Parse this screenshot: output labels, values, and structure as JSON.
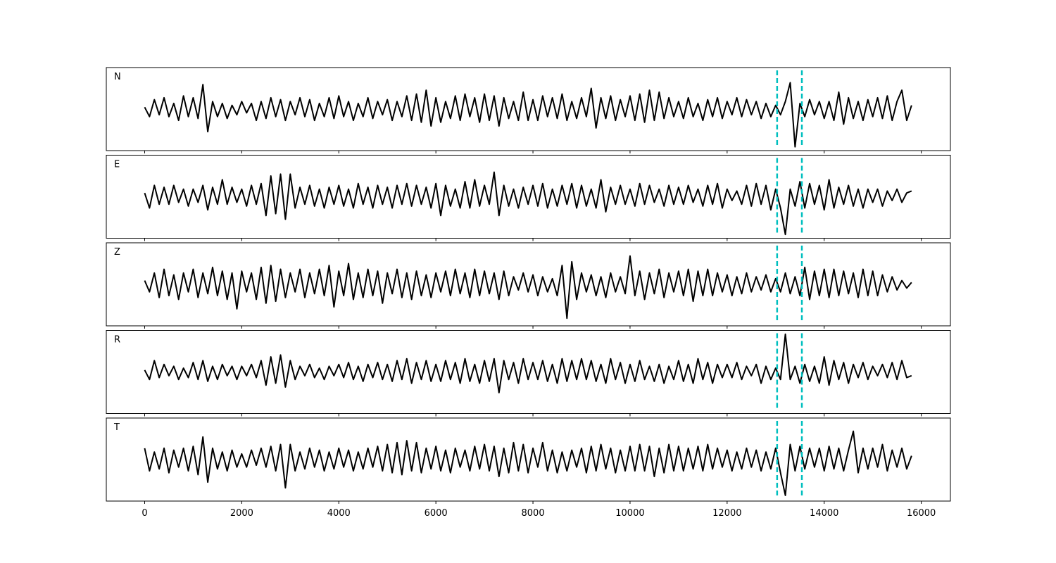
{
  "chart_data": {
    "type": "line",
    "subplots": true,
    "xlim": [
      -790,
      16600
    ],
    "ylim": [
      -1.1,
      1.1
    ],
    "xticks": [
      0,
      2000,
      4000,
      6000,
      8000,
      10000,
      12000,
      14000,
      16000
    ],
    "vlines": [
      13030,
      13540
    ],
    "vline_color": "#00bfbf",
    "x": [
      0,
      100,
      200,
      300,
      400,
      500,
      600,
      700,
      800,
      900,
      1000,
      1100,
      1200,
      1300,
      1400,
      1500,
      1600,
      1700,
      1800,
      1900,
      2000,
      2100,
      2200,
      2300,
      2400,
      2500,
      2600,
      2700,
      2800,
      2900,
      3000,
      3100,
      3200,
      3300,
      3400,
      3500,
      3600,
      3700,
      3800,
      3900,
      4000,
      4100,
      4200,
      4300,
      4400,
      4500,
      4600,
      4700,
      4800,
      4900,
      5000,
      5100,
      5200,
      5300,
      5400,
      5500,
      5600,
      5700,
      5800,
      5900,
      6000,
      6100,
      6200,
      6300,
      6400,
      6500,
      6600,
      6700,
      6800,
      6900,
      7000,
      7100,
      7200,
      7300,
      7400,
      7500,
      7600,
      7700,
      7800,
      7900,
      8000,
      8100,
      8200,
      8300,
      8400,
      8500,
      8600,
      8700,
      8800,
      8900,
      9000,
      9100,
      9200,
      9300,
      9400,
      9500,
      9600,
      9700,
      9800,
      9900,
      10000,
      10100,
      10200,
      10300,
      10400,
      10500,
      10600,
      10700,
      10800,
      10900,
      11000,
      11100,
      11200,
      11300,
      11400,
      11500,
      11600,
      11700,
      11800,
      11900,
      12000,
      12100,
      12200,
      12300,
      12400,
      12500,
      12600,
      12700,
      12800,
      12900,
      13000,
      13100,
      13200,
      13300,
      13400,
      13500,
      13600,
      13700,
      13800,
      13900,
      14000,
      14100,
      14200,
      14300,
      14400,
      14500,
      14600,
      14700,
      14800,
      14900,
      15000,
      15100,
      15200,
      15300,
      15400,
      15500,
      15600,
      15700,
      15800
    ],
    "series": [
      {
        "name": "N",
        "color": "#000000",
        "values": [
          0.05,
          -0.2,
          0.25,
          -0.15,
          0.3,
          -0.2,
          0.15,
          -0.3,
          0.35,
          -0.2,
          0.3,
          -0.25,
          0.65,
          -0.6,
          0.2,
          -0.2,
          0.15,
          -0.25,
          0.1,
          -0.15,
          0.2,
          -0.1,
          0.15,
          -0.3,
          0.2,
          -0.25,
          0.3,
          -0.2,
          0.25,
          -0.3,
          0.2,
          -0.15,
          0.3,
          -0.2,
          0.25,
          -0.3,
          0.15,
          -0.2,
          0.3,
          -0.25,
          0.35,
          -0.2,
          0.2,
          -0.3,
          0.15,
          -0.2,
          0.3,
          -0.25,
          0.2,
          -0.15,
          0.25,
          -0.3,
          0.2,
          -0.2,
          0.35,
          -0.3,
          0.4,
          -0.35,
          0.5,
          -0.45,
          0.3,
          -0.35,
          0.2,
          -0.25,
          0.35,
          -0.3,
          0.4,
          -0.2,
          0.3,
          -0.35,
          0.4,
          -0.3,
          0.35,
          -0.45,
          0.3,
          -0.25,
          0.2,
          -0.3,
          0.45,
          -0.3,
          0.25,
          -0.3,
          0.35,
          -0.2,
          0.3,
          -0.25,
          0.4,
          -0.3,
          0.2,
          -0.25,
          0.3,
          -0.2,
          0.55,
          -0.5,
          0.3,
          -0.25,
          0.35,
          -0.3,
          0.25,
          -0.2,
          0.35,
          -0.3,
          0.4,
          -0.35,
          0.5,
          -0.3,
          0.45,
          -0.25,
          0.3,
          -0.2,
          0.2,
          -0.25,
          0.3,
          -0.2,
          0.15,
          -0.3,
          0.25,
          -0.2,
          0.3,
          -0.25,
          0.2,
          -0.15,
          0.3,
          -0.2,
          0.25,
          -0.15,
          0.2,
          -0.25,
          0.15,
          -0.2,
          0.1,
          -0.15,
          0.2,
          0.7,
          -1.0,
          0.15,
          -0.2,
          0.25,
          -0.15,
          0.2,
          -0.25,
          0.2,
          -0.3,
          0.45,
          -0.4,
          0.3,
          -0.25,
          0.2,
          -0.3,
          0.25,
          -0.2,
          0.3,
          -0.25,
          0.35,
          -0.3,
          0.2,
          0.5,
          -0.3,
          0.1
        ]
      },
      {
        "name": "E",
        "color": "#000000",
        "values": [
          0.1,
          -0.3,
          0.3,
          -0.2,
          0.25,
          -0.2,
          0.3,
          -0.15,
          0.2,
          -0.25,
          0.2,
          -0.15,
          0.3,
          -0.35,
          0.25,
          -0.2,
          0.45,
          -0.2,
          0.25,
          -0.15,
          0.2,
          -0.25,
          0.3,
          -0.2,
          0.35,
          -0.5,
          0.55,
          -0.45,
          0.6,
          -0.6,
          0.6,
          -0.3,
          0.25,
          -0.2,
          0.3,
          -0.25,
          0.2,
          -0.3,
          0.25,
          -0.2,
          0.3,
          -0.25,
          0.2,
          -0.3,
          0.35,
          -0.2,
          0.25,
          -0.3,
          0.3,
          -0.2,
          0.25,
          -0.3,
          0.3,
          -0.2,
          0.35,
          -0.25,
          0.3,
          -0.2,
          0.25,
          -0.3,
          0.35,
          -0.5,
          0.3,
          -0.25,
          0.2,
          -0.3,
          0.4,
          -0.3,
          0.45,
          -0.25,
          0.3,
          -0.2,
          0.65,
          -0.5,
          0.3,
          -0.25,
          0.2,
          -0.3,
          0.25,
          -0.2,
          0.3,
          -0.25,
          0.35,
          -0.3,
          0.2,
          -0.25,
          0.3,
          -0.2,
          0.35,
          -0.3,
          0.3,
          -0.25,
          0.2,
          -0.3,
          0.45,
          -0.4,
          0.25,
          -0.2,
          0.3,
          -0.2,
          0.2,
          -0.25,
          0.35,
          -0.2,
          0.3,
          -0.15,
          0.2,
          -0.25,
          0.3,
          -0.2,
          0.25,
          -0.2,
          0.3,
          -0.15,
          0.2,
          -0.25,
          0.3,
          -0.2,
          0.35,
          -0.3,
          0.2,
          -0.1,
          0.15,
          -0.2,
          0.3,
          -0.25,
          0.35,
          -0.2,
          0.3,
          -0.35,
          0.2,
          -0.3,
          -1.0,
          0.2,
          -0.25,
          0.4,
          -0.3,
          0.35,
          -0.2,
          0.3,
          -0.35,
          0.45,
          -0.3,
          0.25,
          -0.2,
          0.3,
          -0.25,
          0.2,
          -0.3,
          0.2,
          -0.15,
          0.2,
          -0.25,
          0.15,
          -0.1,
          0.2,
          -0.15,
          0.1,
          0.15
        ]
      },
      {
        "name": "Z",
        "color": "#000000",
        "values": [
          0.1,
          -0.2,
          0.3,
          -0.35,
          0.4,
          -0.3,
          0.25,
          -0.4,
          0.3,
          -0.2,
          0.4,
          -0.35,
          0.3,
          -0.25,
          0.45,
          -0.3,
          0.35,
          -0.4,
          0.3,
          -0.65,
          0.35,
          -0.2,
          0.3,
          -0.4,
          0.45,
          -0.5,
          0.5,
          -0.45,
          0.4,
          -0.35,
          0.3,
          -0.2,
          0.4,
          -0.35,
          0.3,
          -0.25,
          0.4,
          -0.3,
          0.5,
          -0.6,
          0.35,
          -0.3,
          0.55,
          -0.4,
          0.3,
          -0.35,
          0.4,
          -0.3,
          0.35,
          -0.5,
          0.3,
          -0.25,
          0.4,
          -0.35,
          0.3,
          -0.4,
          0.35,
          -0.3,
          0.25,
          -0.35,
          0.3,
          -0.2,
          0.35,
          -0.3,
          0.4,
          -0.25,
          0.3,
          -0.35,
          0.4,
          -0.3,
          0.35,
          -0.25,
          0.3,
          -0.4,
          0.35,
          -0.3,
          0.2,
          -0.15,
          0.3,
          -0.2,
          0.25,
          -0.3,
          0.2,
          -0.2,
          0.15,
          -0.3,
          0.5,
          -0.9,
          0.6,
          -0.4,
          0.3,
          -0.2,
          0.25,
          -0.3,
          0.2,
          -0.35,
          0.3,
          -0.2,
          0.2,
          -0.25,
          0.75,
          -0.3,
          0.35,
          -0.4,
          0.3,
          -0.25,
          0.4,
          -0.35,
          0.3,
          -0.2,
          0.35,
          -0.3,
          0.4,
          -0.45,
          0.35,
          -0.3,
          0.4,
          -0.3,
          0.3,
          -0.2,
          0.25,
          -0.3,
          0.2,
          -0.25,
          0.3,
          -0.2,
          0.2,
          -0.15,
          0.25,
          -0.2,
          0.15,
          -0.2,
          0.3,
          -0.25,
          0.2,
          -0.3,
          0.45,
          -0.4,
          0.35,
          -0.3,
          0.4,
          -0.35,
          0.4,
          -0.3,
          0.35,
          -0.25,
          0.3,
          -0.35,
          0.4,
          -0.3,
          0.35,
          -0.3,
          0.25,
          -0.2,
          0.2,
          -0.15,
          0.1,
          -0.1,
          0.05
        ]
      },
      {
        "name": "R",
        "color": "#000000",
        "values": [
          0.05,
          -0.2,
          0.3,
          -0.15,
          0.2,
          -0.1,
          0.15,
          -0.2,
          0.1,
          -0.15,
          0.25,
          -0.2,
          0.3,
          -0.25,
          0.15,
          -0.2,
          0.2,
          -0.1,
          0.15,
          -0.2,
          0.15,
          -0.1,
          0.2,
          -0.15,
          0.3,
          -0.35,
          0.4,
          -0.3,
          0.45,
          -0.4,
          0.3,
          -0.2,
          0.15,
          -0.1,
          0.2,
          -0.15,
          0.1,
          -0.2,
          0.15,
          -0.1,
          0.2,
          -0.15,
          0.25,
          -0.2,
          0.15,
          -0.25,
          0.2,
          -0.15,
          0.25,
          -0.2,
          0.2,
          -0.25,
          0.3,
          -0.2,
          0.35,
          -0.3,
          0.25,
          -0.2,
          0.3,
          -0.25,
          0.2,
          -0.25,
          0.3,
          -0.2,
          0.25,
          -0.3,
          0.35,
          -0.25,
          0.2,
          -0.3,
          0.3,
          -0.25,
          0.35,
          -0.55,
          0.3,
          -0.2,
          0.25,
          -0.3,
          0.35,
          -0.2,
          0.25,
          -0.2,
          0.3,
          -0.25,
          0.2,
          -0.3,
          0.35,
          -0.25,
          0.3,
          -0.2,
          0.35,
          -0.2,
          0.3,
          -0.25,
          0.2,
          -0.3,
          0.35,
          -0.2,
          0.25,
          -0.3,
          0.2,
          -0.25,
          0.3,
          -0.2,
          0.15,
          -0.25,
          0.2,
          -0.3,
          0.15,
          -0.2,
          0.3,
          -0.25,
          0.2,
          -0.3,
          0.35,
          -0.2,
          0.25,
          -0.3,
          0.2,
          -0.15,
          0.2,
          -0.15,
          0.25,
          -0.2,
          0.15,
          -0.1,
          0.2,
          -0.3,
          0.15,
          -0.2,
          0.1,
          -0.2,
          1.0,
          -0.2,
          0.15,
          -0.3,
          0.2,
          -0.25,
          0.15,
          -0.3,
          0.4,
          -0.35,
          0.3,
          -0.2,
          0.25,
          -0.3,
          0.2,
          -0.15,
          0.25,
          -0.2,
          0.15,
          -0.1,
          0.2,
          -0.15,
          0.25,
          -0.2,
          0.3,
          -0.15,
          -0.1
        ]
      },
      {
        "name": "T",
        "color": "#000000",
        "values": [
          0.3,
          -0.3,
          0.2,
          -0.25,
          0.3,
          -0.35,
          0.25,
          -0.2,
          0.3,
          -0.3,
          0.35,
          -0.4,
          0.6,
          -0.6,
          0.3,
          -0.25,
          0.2,
          -0.3,
          0.25,
          -0.2,
          0.15,
          -0.2,
          0.25,
          -0.15,
          0.3,
          -0.2,
          0.35,
          -0.3,
          0.4,
          -0.75,
          0.4,
          -0.3,
          0.2,
          -0.25,
          0.3,
          -0.2,
          0.25,
          -0.3,
          0.2,
          -0.25,
          0.3,
          -0.2,
          0.25,
          -0.3,
          0.2,
          -0.25,
          0.3,
          -0.2,
          0.35,
          -0.3,
          0.4,
          -0.35,
          0.45,
          -0.4,
          0.5,
          -0.3,
          0.45,
          -0.35,
          0.3,
          -0.25,
          0.35,
          -0.3,
          0.25,
          -0.35,
          0.3,
          -0.2,
          0.25,
          -0.3,
          0.35,
          -0.25,
          0.4,
          -0.3,
          0.35,
          -0.45,
          0.3,
          -0.35,
          0.45,
          -0.3,
          0.4,
          -0.35,
          0.3,
          -0.2,
          0.45,
          -0.3,
          0.25,
          -0.35,
          0.2,
          -0.3,
          0.25,
          -0.2,
          0.3,
          -0.35,
          0.35,
          -0.3,
          0.4,
          -0.25,
          0.3,
          -0.35,
          0.25,
          -0.3,
          0.35,
          -0.3,
          0.4,
          -0.3,
          0.35,
          -0.45,
          0.3,
          -0.35,
          0.4,
          -0.3,
          0.35,
          -0.3,
          0.3,
          -0.25,
          0.35,
          -0.3,
          0.4,
          -0.25,
          0.3,
          -0.2,
          0.25,
          -0.3,
          0.2,
          -0.25,
          0.3,
          -0.2,
          0.25,
          -0.3,
          0.2,
          -0.25,
          0.3,
          -0.35,
          -0.95,
          0.4,
          -0.3,
          0.35,
          -0.25,
          0.3,
          -0.2,
          0.3,
          -0.3,
          0.35,
          -0.25,
          0.3,
          -0.3,
          0.25,
          0.75,
          -0.35,
          0.3,
          -0.25,
          0.3,
          -0.2,
          0.4,
          -0.3,
          0.25,
          -0.2,
          0.3,
          -0.25,
          0.1
        ]
      }
    ]
  }
}
